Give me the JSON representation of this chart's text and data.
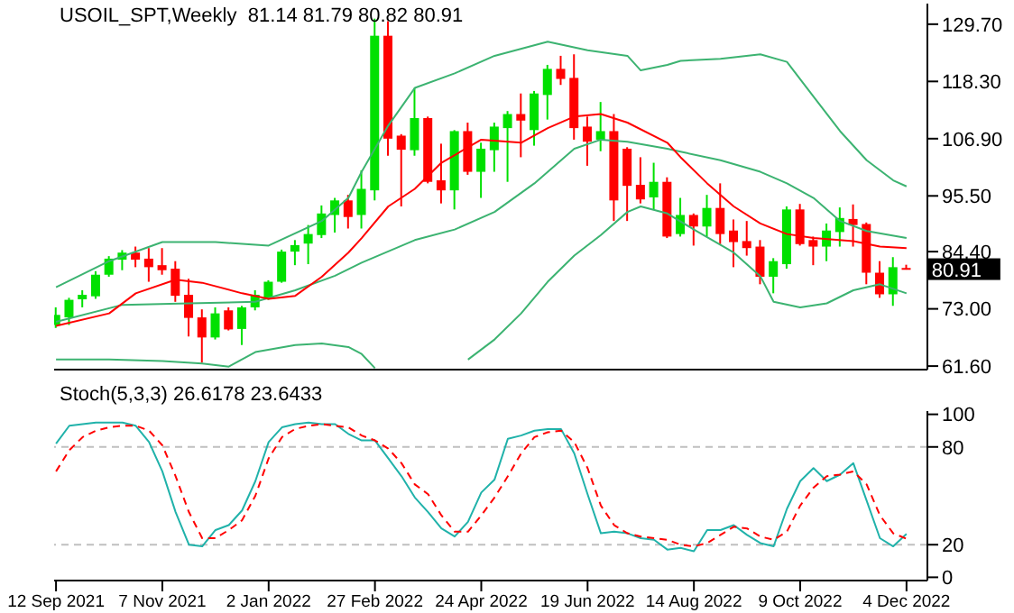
{
  "chart_data": [
    {
      "type": "candlestick",
      "title": "USOIL_SPT,Weekly  81.14 81.79 80.82 80.91",
      "x": [
        "2021-09-12",
        "2021-09-19",
        "2021-09-26",
        "2021-10-03",
        "2021-10-10",
        "2021-10-17",
        "2021-10-24",
        "2021-10-31",
        "2021-11-07",
        "2021-11-14",
        "2021-11-21",
        "2021-11-28",
        "2021-12-05",
        "2021-12-12",
        "2021-12-19",
        "2021-12-26",
        "2022-01-02",
        "2022-01-09",
        "2022-01-16",
        "2022-01-23",
        "2022-01-30",
        "2022-02-06",
        "2022-02-13",
        "2022-02-20",
        "2022-02-27",
        "2022-03-06",
        "2022-03-13",
        "2022-03-20",
        "2022-03-27",
        "2022-04-03",
        "2022-04-10",
        "2022-04-17",
        "2022-04-24",
        "2022-05-01",
        "2022-05-08",
        "2022-05-15",
        "2022-05-22",
        "2022-05-29",
        "2022-06-05",
        "2022-06-12",
        "2022-06-19",
        "2022-06-26",
        "2022-07-03",
        "2022-07-10",
        "2022-07-17",
        "2022-07-24",
        "2022-07-31",
        "2022-08-07",
        "2022-08-14",
        "2022-08-21",
        "2022-08-28",
        "2022-09-04",
        "2022-09-11",
        "2022-09-18",
        "2022-09-25",
        "2022-10-02",
        "2022-10-09",
        "2022-10-16",
        "2022-10-23",
        "2022-10-30",
        "2022-11-06",
        "2022-11-13",
        "2022-11-20",
        "2022-11-27",
        "2022-12-04"
      ],
      "ohlc": [
        [
          69.8,
          73.3,
          69.2,
          71.8
        ],
        [
          71.3,
          75.2,
          69.8,
          74.8
        ],
        [
          74.9,
          76.7,
          73.3,
          75.8
        ],
        [
          75.5,
          80.5,
          75.0,
          79.8
        ],
        [
          79.8,
          83.5,
          79.4,
          83.0
        ],
        [
          82.8,
          84.7,
          80.7,
          84.2
        ],
        [
          84.2,
          85.4,
          81.3,
          82.8
        ],
        [
          83.0,
          85.1,
          78.4,
          81.3
        ],
        [
          81.7,
          85.1,
          79.8,
          80.7
        ],
        [
          81.0,
          82.5,
          74.4,
          75.6
        ],
        [
          75.8,
          79.0,
          67.5,
          71.2
        ],
        [
          71.3,
          72.9,
          62.3,
          67.3
        ],
        [
          67.3,
          73.3,
          66.9,
          72.1
        ],
        [
          72.7,
          73.3,
          68.7,
          68.9
        ],
        [
          69.0,
          73.6,
          65.8,
          73.3
        ],
        [
          73.3,
          76.7,
          72.7,
          75.8
        ],
        [
          75.2,
          78.7,
          74.8,
          78.4
        ],
        [
          78.4,
          84.8,
          78.2,
          84.4
        ],
        [
          84.4,
          86.7,
          81.7,
          85.7
        ],
        [
          86.0,
          89.7,
          81.9,
          87.9
        ],
        [
          87.7,
          93.6,
          87.1,
          92.0
        ],
        [
          91.7,
          95.1,
          88.2,
          94.6
        ],
        [
          94.6,
          95.7,
          89.0,
          91.3
        ],
        [
          91.7,
          100.6,
          89.0,
          96.9
        ],
        [
          96.6,
          130.8,
          94.6,
          127.4
        ],
        [
          127.4,
          130.3,
          103.5,
          106.9
        ],
        [
          107.5,
          107.8,
          93.4,
          104.7
        ],
        [
          104.6,
          117.0,
          103.5,
          111.0
        ],
        [
          111.0,
          111.3,
          98.0,
          98.3
        ],
        [
          98.6,
          105.9,
          94.0,
          96.6
        ],
        [
          96.6,
          108.6,
          92.8,
          108.4
        ],
        [
          108.4,
          110.1,
          99.7,
          100.3
        ],
        [
          100.3,
          106.1,
          95.1,
          104.9
        ],
        [
          104.6,
          110.1,
          100.3,
          109.3
        ],
        [
          109.0,
          112.4,
          98.3,
          111.8
        ],
        [
          111.8,
          115.9,
          103.2,
          110.5
        ],
        [
          108.6,
          116.4,
          105.5,
          115.9
        ],
        [
          115.6,
          121.6,
          110.7,
          120.8
        ],
        [
          120.8,
          123.4,
          117.6,
          118.8
        ],
        [
          119.0,
          123.7,
          106.7,
          109.0
        ],
        [
          109.3,
          111.3,
          101.5,
          106.3
        ],
        [
          106.7,
          114.2,
          104.4,
          108.4
        ],
        [
          108.4,
          111.8,
          90.5,
          94.6
        ],
        [
          104.9,
          105.2,
          90.5,
          97.5
        ],
        [
          97.7,
          103.2,
          94.0,
          94.8
        ],
        [
          95.2,
          102.1,
          92.8,
          98.3
        ],
        [
          98.3,
          99.2,
          87.1,
          87.4
        ],
        [
          87.9,
          95.1,
          87.4,
          91.7
        ],
        [
          91.7,
          92.0,
          85.6,
          89.4
        ],
        [
          89.4,
          95.7,
          87.4,
          93.1
        ],
        [
          93.1,
          98.0,
          85.9,
          87.9
        ],
        [
          88.6,
          90.8,
          81.3,
          86.3
        ],
        [
          86.5,
          90.5,
          83.6,
          85.1
        ],
        [
          85.4,
          86.7,
          77.9,
          79.4
        ],
        [
          79.4,
          83.1,
          76.1,
          82.5
        ],
        [
          81.9,
          93.4,
          81.0,
          92.8
        ],
        [
          92.8,
          93.9,
          85.6,
          85.9
        ],
        [
          86.7,
          87.4,
          81.7,
          85.4
        ],
        [
          85.4,
          90.0,
          82.5,
          88.6
        ],
        [
          88.3,
          93.2,
          85.4,
          91.1
        ],
        [
          90.9,
          93.8,
          85.4,
          89.7
        ],
        [
          89.9,
          90.2,
          77.9,
          80.2
        ],
        [
          80.2,
          82.5,
          75.2,
          75.9
        ],
        [
          75.9,
          83.3,
          73.6,
          81.3
        ],
        [
          81.14,
          81.79,
          80.82,
          80.91
        ]
      ],
      "colors": [
        "#00e000",
        "#00e000",
        "#00e000",
        "#00e000",
        "#00e000",
        "#00e000",
        "#ff0000",
        "#ff0000",
        "#ff0000",
        "#ff0000",
        "#ff0000",
        "#ff0000",
        "#00e000",
        "#ff0000",
        "#00e000",
        "#00e000",
        "#00e000",
        "#00e000",
        "#00e000",
        "#00e000",
        "#00e000",
        "#00e000",
        "#ff0000",
        "#00e000",
        "#00e000",
        "#ff0000",
        "#ff0000",
        "#00e000",
        "#ff0000",
        "#ff0000",
        "#00e000",
        "#ff0000",
        "#00e000",
        "#00e000",
        "#00e000",
        "#ff0000",
        "#00e000",
        "#00e000",
        "#ff0000",
        "#ff0000",
        "#ff0000",
        "#00e000",
        "#ff0000",
        "#ff0000",
        "#ff0000",
        "#00e000",
        "#ff0000",
        "#00e000",
        "#ff0000",
        "#00e000",
        "#ff0000",
        "#ff0000",
        "#ff0000",
        "#ff0000",
        "#00e000",
        "#00e000",
        "#ff0000",
        "#ff0000",
        "#00e000",
        "#00e000",
        "#ff0000",
        "#ff0000",
        "#ff0000",
        "#00e000",
        "#ff0000"
      ],
      "series": [
        {
          "type": "line",
          "color": "#3cb371",
          "x": [
            "2021-09-12",
            "2021-10-10",
            "2021-11-07",
            "2021-12-05",
            "2022-01-02",
            "2022-01-30",
            "2022-02-13",
            "2022-02-20",
            "2022-03-06",
            "2022-03-20",
            "2022-04-10",
            "2022-05-01",
            "2022-05-29",
            "2022-06-19",
            "2022-07-10",
            "2022-07-17",
            "2022-07-31",
            "2022-08-07",
            "2022-08-28",
            "2022-09-18",
            "2022-10-02",
            "2022-10-16",
            "2022-10-30",
            "2022-11-13",
            "2022-11-27",
            "2022-12-04"
          ],
          "values": [
            77.3,
            82.5,
            86.3,
            86.3,
            85.6,
            90.5,
            95.1,
            100.3,
            109.5,
            117.0,
            119.9,
            123.4,
            126.2,
            124.5,
            123.4,
            120.5,
            121.6,
            122.4,
            122.8,
            123.7,
            122.2,
            115.3,
            108.4,
            102.6,
            98.6,
            97.4
          ]
        },
        {
          "type": "line",
          "color": "#3cb371",
          "x": [
            "2021-09-12",
            "2021-10-17",
            "2021-11-21",
            "2021-12-26",
            "2022-01-16",
            "2022-02-06",
            "2022-02-20",
            "2022-03-20",
            "2022-04-10",
            "2022-05-01",
            "2022-05-22",
            "2022-06-12",
            "2022-06-26",
            "2022-07-10",
            "2022-07-31",
            "2022-08-07",
            "2022-08-28",
            "2022-09-18",
            "2022-10-02",
            "2022-10-16",
            "2022-10-30",
            "2022-11-13",
            "2022-12-04"
          ],
          "values": [
            70.4,
            73.8,
            74.1,
            74.4,
            76.7,
            79.6,
            82.2,
            86.7,
            88.8,
            92.3,
            98.0,
            104.9,
            106.7,
            106.3,
            104.9,
            104.3,
            102.6,
            100.3,
            98.0,
            95.1,
            90.5,
            88.5,
            87.1
          ]
        },
        {
          "type": "line",
          "color": "#ff0000",
          "x": [
            "2021-09-12",
            "2021-10-10",
            "2021-10-24",
            "2021-11-14",
            "2021-11-28",
            "2021-12-19",
            "2022-01-02",
            "2022-01-16",
            "2022-01-30",
            "2022-02-13",
            "2022-02-20",
            "2022-03-06",
            "2022-03-20",
            "2022-04-03",
            "2022-04-24",
            "2022-05-15",
            "2022-05-29",
            "2022-06-12",
            "2022-06-26",
            "2022-07-10",
            "2022-07-31",
            "2022-08-07",
            "2022-08-21",
            "2022-09-04",
            "2022-09-18",
            "2022-10-02",
            "2022-10-16",
            "2022-11-06",
            "2022-11-20",
            "2022-12-04"
          ],
          "values": [
            69.6,
            72.1,
            76.1,
            78.8,
            78.2,
            76.1,
            75.0,
            75.6,
            79.4,
            84.2,
            87.1,
            93.4,
            96.9,
            102.1,
            106.7,
            106.1,
            109.0,
            111.3,
            111.8,
            110.1,
            106.1,
            103.2,
            98.0,
            93.4,
            90.0,
            87.9,
            87.1,
            86.5,
            85.4,
            85.1
          ]
        },
        {
          "type": "line",
          "color": "#3cb371",
          "x": [
            "2021-09-12",
            "2021-10-10",
            "2021-11-07",
            "2021-11-28",
            "2021-12-12",
            "2021-12-26",
            "2022-01-16",
            "2022-01-30",
            "2022-02-13",
            "2022-02-20",
            "2022-02-27",
            "2022-03-20",
            "2022-04-17",
            "2022-05-01",
            "2022-05-15",
            "2022-05-29",
            "2022-06-12",
            "2022-06-26",
            "2022-07-10",
            "2022-07-17",
            "2022-07-31",
            "2022-08-14",
            "2022-09-04",
            "2022-09-18",
            "2022-09-25",
            "2022-10-09",
            "2022-10-23",
            "2022-11-06",
            "2022-11-20",
            "2022-12-04"
          ],
          "values": [
            62.9,
            62.9,
            62.6,
            62.1,
            61.5,
            64.4,
            65.8,
            66.1,
            65.4,
            64.0,
            61.2,
            null,
            62.9,
            66.9,
            72.1,
            78.4,
            83.6,
            87.7,
            92.3,
            93.4,
            92.0,
            88.8,
            84.2,
            79.5,
            74.4,
            73.3,
            74.1,
            76.7,
            77.9,
            76.1
          ]
        }
      ],
      "xlim": [
        "2021-09-11",
        "2022-12-15"
      ],
      "ylim": [
        60.9,
        133.8
      ],
      "yticks": [
        {
          "value": 61.6,
          "label": "61.60"
        },
        {
          "value": 73,
          "label": "73.00"
        },
        {
          "value": 84.4,
          "label": "84.40"
        },
        {
          "value": 95.5,
          "label": "95.50"
        },
        {
          "value": 106.9,
          "label": "106.90"
        },
        {
          "value": 118.3,
          "label": "118.30"
        },
        {
          "value": 129.7,
          "label": "129.70"
        }
      ],
      "tick_labels": "y",
      "annotations": [
        {
          "text": "80.91",
          "x": "2022-12-04",
          "y": 80.91
        }
      ]
    },
    {
      "type": "line",
      "title": "Stoch(5,3,3) 26.6178 23.6433",
      "x": [
        "2021-09-12",
        "2021-09-19",
        "2021-09-26",
        "2021-10-03",
        "2021-10-10",
        "2021-10-17",
        "2021-10-24",
        "2021-10-31",
        "2021-11-07",
        "2021-11-14",
        "2021-11-21",
        "2021-11-28",
        "2021-12-05",
        "2021-12-12",
        "2021-12-19",
        "2021-12-26",
        "2022-01-02",
        "2022-01-09",
        "2022-01-16",
        "2022-01-23",
        "2022-01-30",
        "2022-02-06",
        "2022-02-13",
        "2022-02-20",
        "2022-02-27",
        "2022-03-06",
        "2022-03-13",
        "2022-03-20",
        "2022-03-27",
        "2022-04-03",
        "2022-04-10",
        "2022-04-17",
        "2022-04-24",
        "2022-05-01",
        "2022-05-08",
        "2022-05-15",
        "2022-05-22",
        "2022-05-29",
        "2022-06-05",
        "2022-06-12",
        "2022-06-19",
        "2022-06-26",
        "2022-07-03",
        "2022-07-10",
        "2022-07-17",
        "2022-07-24",
        "2022-07-31",
        "2022-08-07",
        "2022-08-14",
        "2022-08-21",
        "2022-08-28",
        "2022-09-04",
        "2022-09-11",
        "2022-09-18",
        "2022-09-25",
        "2022-10-02",
        "2022-10-09",
        "2022-10-16",
        "2022-10-23",
        "2022-10-30",
        "2022-11-06",
        "2022-11-13",
        "2022-11-20",
        "2022-11-27",
        "2022-12-04"
      ],
      "series": [
        {
          "color": "#20b2aa",
          "line_style": "solid",
          "values": [
            82,
            93,
            94,
            95,
            95,
            95,
            93,
            83,
            65,
            40,
            20,
            19,
            29,
            32,
            41,
            59,
            83,
            92,
            94,
            95,
            94,
            94,
            88,
            84,
            84,
            73,
            62,
            49,
            40,
            30,
            25,
            34,
            52,
            60,
            85,
            87,
            90,
            91,
            91,
            76,
            51,
            27,
            28,
            27,
            24,
            23,
            17,
            18,
            16,
            29,
            29,
            32,
            26,
            21,
            19,
            42,
            59,
            67,
            59,
            63,
            70,
            47,
            24,
            19,
            26.6178
          ]
        },
        {
          "color": "#ff0000",
          "line_style": "dashed",
          "values": [
            65,
            78,
            86,
            90,
            92,
            93,
            93,
            90,
            81,
            62,
            40,
            24,
            24,
            29,
            35,
            50,
            73,
            86,
            91,
            93,
            94,
            93,
            92,
            87,
            84,
            79,
            70,
            57,
            51,
            38,
            28,
            28,
            38,
            49,
            62,
            76,
            86,
            89,
            90,
            83,
            67,
            44,
            32,
            27,
            25,
            24,
            23,
            20,
            19,
            21,
            26,
            31,
            30,
            25,
            23,
            28,
            44,
            55,
            62,
            63,
            65,
            57,
            38,
            27,
            23.6433
          ]
        }
      ],
      "xlim": [
        "2021-09-11",
        "2022-12-15"
      ],
      "xticks": [
        {
          "value": "2021-09-12",
          "label": "12 Sep 2021"
        },
        {
          "value": "2021-11-07",
          "label": "7 Nov 2021"
        },
        {
          "value": "2022-01-02",
          "label": "2 Jan 2022"
        },
        {
          "value": "2022-02-27",
          "label": "27 Feb 2022"
        },
        {
          "value": "2022-04-24",
          "label": "24 Apr 2022"
        },
        {
          "value": "2022-06-19",
          "label": "19 Jun 2022"
        },
        {
          "value": "2022-08-14",
          "label": "14 Aug 2022"
        },
        {
          "value": "2022-10-09",
          "label": "9 Oct 2022"
        },
        {
          "value": "2022-12-04",
          "label": "4 Dec 2022"
        }
      ],
      "ylim": [
        -2,
        102
      ],
      "yticks": [
        0,
        20,
        80,
        100
      ],
      "ref_lines": [
        {
          "axis": "y",
          "value": 20,
          "color": "#c0c0c0",
          "line_style": "dashed"
        },
        {
          "axis": "y",
          "value": 80,
          "color": "#c0c0c0",
          "line_style": "dashed"
        }
      ]
    }
  ]
}
